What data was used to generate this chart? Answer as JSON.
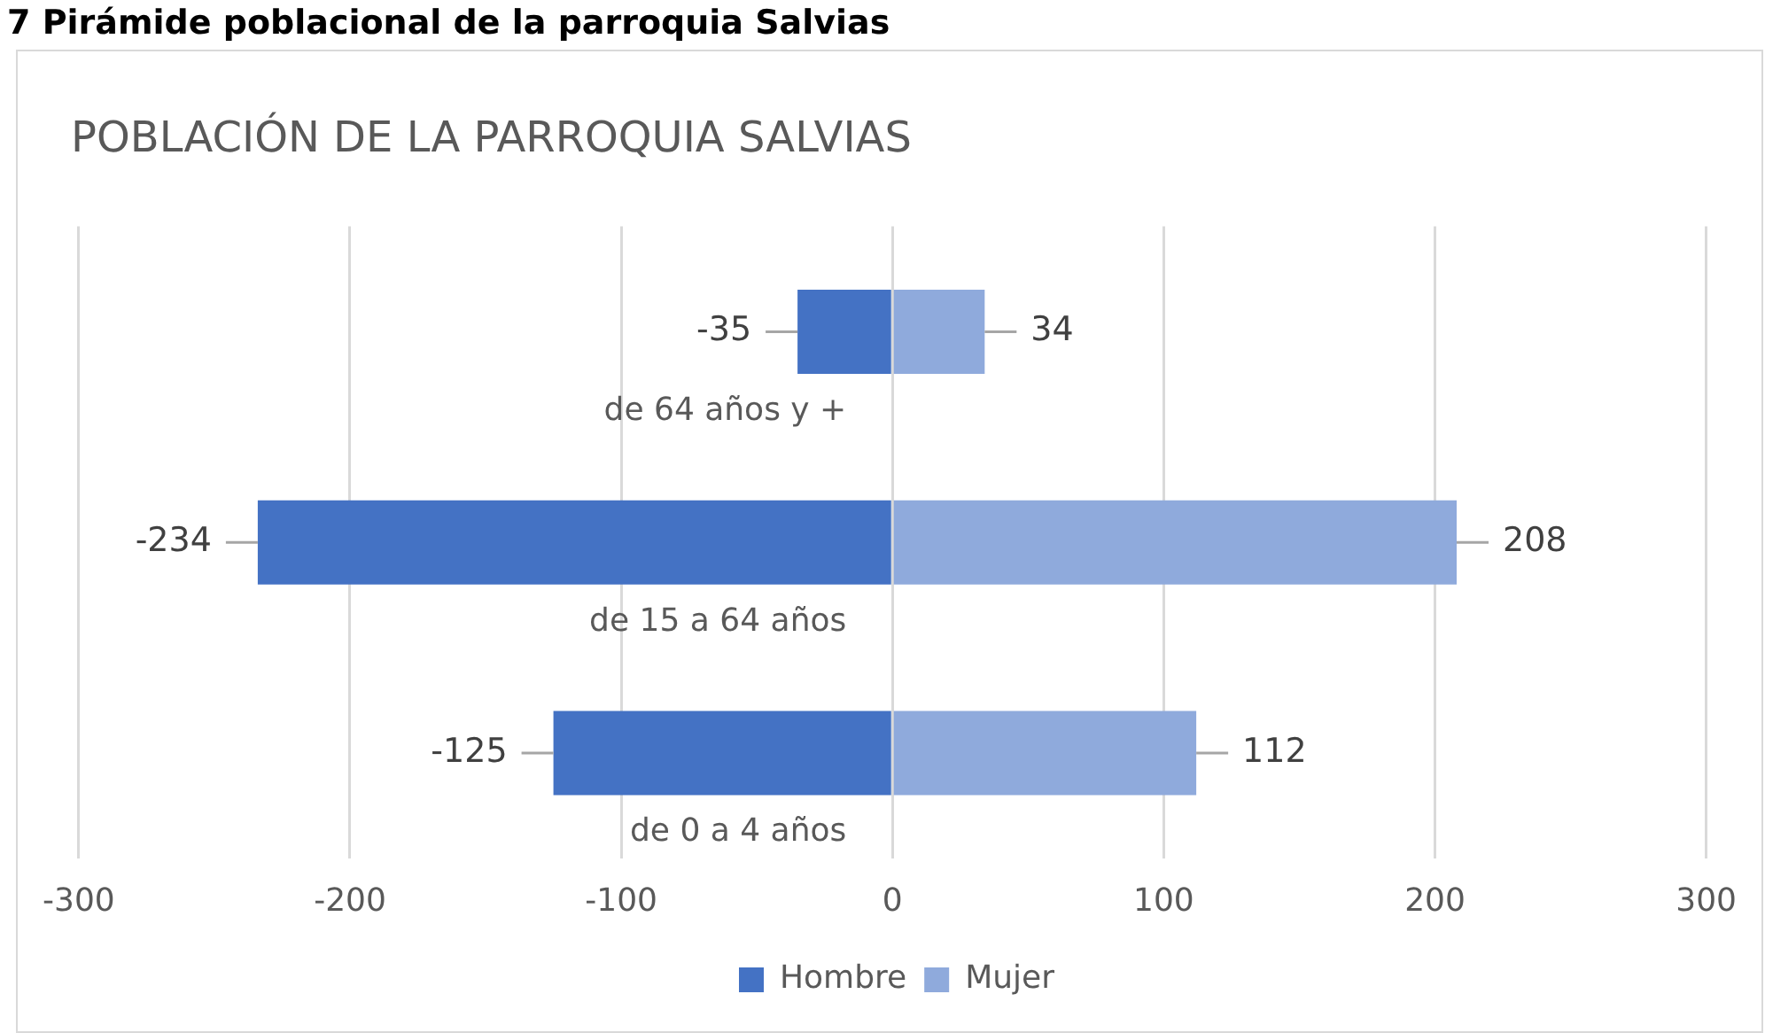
{
  "chart_data": {
    "type": "bar",
    "orientation": "horizontal",
    "stacked": true,
    "title": "POBLACIÓN DE LA PARROQUIA SALVIAS",
    "annotations": [
      "7 Pirámide poblacional de la parroquia Salvias"
    ],
    "categories": [
      "de 64 años y +",
      "de 15 a 64 años",
      "de 0 a 4 años"
    ],
    "series": [
      {
        "name": "Hombre",
        "color": "#4472c4",
        "values": [
          -35,
          -234,
          -125
        ]
      },
      {
        "name": "Mujer",
        "color": "#8faadc",
        "values": [
          34,
          208,
          112
        ]
      }
    ],
    "xlim": [
      -300,
      300
    ],
    "xticks": [
      -300,
      -200,
      -100,
      0,
      100,
      200,
      300
    ],
    "grid": "x",
    "legend": "bottom",
    "data_labels": true
  }
}
